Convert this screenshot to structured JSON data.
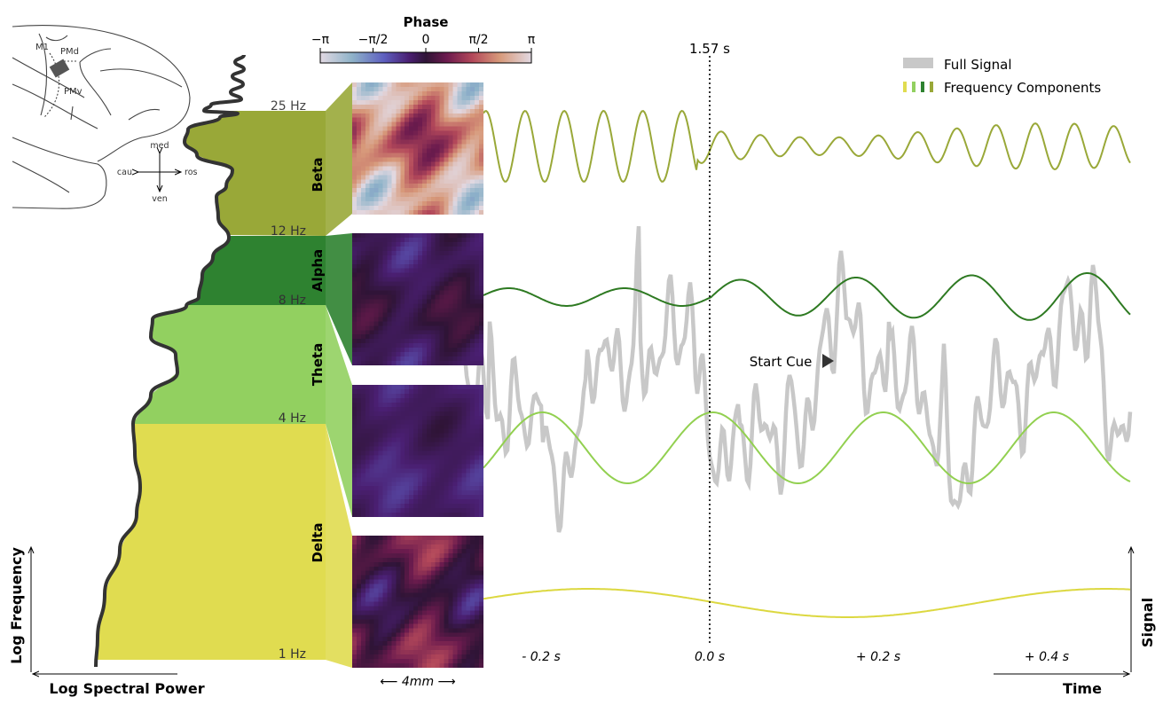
{
  "colors": {
    "beta": "#99a838",
    "alpha": "#2e8230",
    "theta": "#92d060",
    "delta": "#e0dc50",
    "full_signal": "#c8c8c8",
    "spectrum": "#333333"
  },
  "brain": {
    "labels": {
      "m1": "M1",
      "pmd": "PMd",
      "pmv": "PMv"
    },
    "compass": {
      "up": "med",
      "down": "ven",
      "left": "cau",
      "right": "ros"
    }
  },
  "colorbar": {
    "title": "Phase",
    "ticks": [
      "−π",
      "−π/2",
      "0",
      "π/2",
      "π"
    ],
    "colormap": "twilight"
  },
  "bands": [
    {
      "name": "Beta",
      "upper_hz": "25 Hz"
    },
    {
      "name": "Alpha",
      "upper_hz": "12 Hz"
    },
    {
      "name": "Theta",
      "upper_hz": "8 Hz"
    },
    {
      "name": "Delta",
      "upper_hz": "4 Hz",
      "lower_hz": "1 Hz"
    }
  ],
  "scale_label": "⟵ 4mm ⟶",
  "marker": {
    "time_label": "1.57 s",
    "event_label": "Start Cue"
  },
  "legend": {
    "full_signal": "Full Signal",
    "components": "Frequency Components"
  },
  "time_ticks": [
    "- 0.2 s",
    "0.0 s",
    "+ 0.2 s",
    "+ 0.4 s"
  ],
  "axes": {
    "left_y": "Log Frequency",
    "left_x": "Log Spectral Power",
    "right_y": "Signal",
    "right_x": "Time"
  }
}
